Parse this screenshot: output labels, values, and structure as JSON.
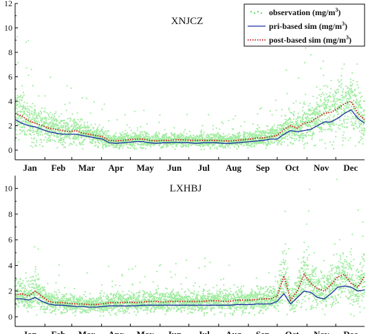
{
  "chart_data": [
    {
      "type": "scatter",
      "title": "XNJCZ",
      "xlabel": "",
      "ylabel": "",
      "ylim": [
        0,
        12
      ],
      "yticks": [
        0,
        2,
        4,
        6,
        8,
        10,
        12
      ],
      "months": [
        "Jan",
        "Feb",
        "Mar",
        "Apr",
        "May",
        "Jun",
        "Jul",
        "Aug",
        "Sep",
        "Oct",
        "Nov",
        "Dec"
      ],
      "legend": {
        "position": "top-right",
        "entries": [
          {
            "label": "observation",
            "unit": "(mg/m",
            "sup": "3",
            "close": ")",
            "style": "dots",
            "color": "#55dd55"
          },
          {
            "label": "pri-based sim",
            "unit": "(mg/m",
            "sup": "3",
            "close": ")",
            "style": "line",
            "color": "#1a2f9f"
          },
          {
            "label": "post-based sim",
            "unit": "(mg/m",
            "sup": "3",
            "close": ")",
            "style": "dotted",
            "color": "#cc1111"
          }
        ]
      },
      "series": [
        {
          "role": "pri",
          "x": [
            1,
            8,
            15,
            22,
            29,
            36,
            43,
            50,
            57,
            64,
            71,
            78,
            85,
            92,
            99,
            106,
            113,
            120,
            127,
            134,
            141,
            148,
            155,
            162,
            169,
            176,
            183,
            190,
            197,
            204,
            211,
            218,
            225,
            232,
            239,
            246,
            253,
            260,
            267,
            274,
            281,
            288,
            295,
            302,
            309,
            316,
            323,
            330,
            337,
            344,
            351,
            358,
            365
          ],
          "values": [
            2.5,
            2.2,
            2.0,
            1.9,
            1.7,
            1.5,
            1.4,
            1.3,
            1.3,
            1.3,
            1.2,
            1.1,
            1.0,
            0.9,
            0.6,
            0.55,
            0.6,
            0.65,
            0.7,
            0.7,
            0.6,
            0.55,
            0.6,
            0.6,
            0.65,
            0.6,
            0.6,
            0.55,
            0.6,
            0.6,
            0.6,
            0.55,
            0.55,
            0.6,
            0.65,
            0.7,
            0.75,
            0.8,
            0.9,
            0.9,
            1.3,
            1.6,
            1.5,
            1.6,
            1.7,
            2.0,
            2.3,
            2.3,
            2.6,
            3.0,
            3.3,
            2.6,
            2.2
          ]
        },
        {
          "role": "post",
          "x": [
            1,
            8,
            15,
            22,
            29,
            36,
            43,
            50,
            57,
            64,
            71,
            78,
            85,
            92,
            99,
            106,
            113,
            120,
            127,
            134,
            141,
            148,
            155,
            162,
            169,
            176,
            183,
            190,
            197,
            204,
            211,
            218,
            225,
            232,
            239,
            246,
            253,
            260,
            267,
            274,
            281,
            288,
            295,
            302,
            309,
            316,
            323,
            330,
            337,
            344,
            351,
            358,
            365
          ],
          "values": [
            3.0,
            2.8,
            2.4,
            2.2,
            2.0,
            1.8,
            1.7,
            1.6,
            1.5,
            1.6,
            1.4,
            1.3,
            1.2,
            1.1,
            0.8,
            0.75,
            0.8,
            0.85,
            0.9,
            0.9,
            0.8,
            0.75,
            0.8,
            0.8,
            0.85,
            0.85,
            0.8,
            0.8,
            0.8,
            0.8,
            0.8,
            0.75,
            0.75,
            0.8,
            0.85,
            0.9,
            1.0,
            1.0,
            1.1,
            1.2,
            1.7,
            2.0,
            1.8,
            2.2,
            2.3,
            2.7,
            3.0,
            3.1,
            3.4,
            3.8,
            4.0,
            3.0,
            2.5
          ]
        }
      ]
    },
    {
      "type": "scatter",
      "title": "LXHBJ",
      "xlabel": "",
      "ylabel": "",
      "ylim": [
        0,
        11
      ],
      "yticks": [
        0,
        2,
        4,
        6,
        8,
        10
      ],
      "months": [
        "Jan",
        "Feb",
        "Mar",
        "Apr",
        "May",
        "Jun",
        "Jul",
        "Aug",
        "Sep",
        "Oct",
        "Nov",
        "Dec"
      ],
      "series": [
        {
          "role": "pri",
          "x": [
            1,
            8,
            15,
            22,
            29,
            36,
            43,
            50,
            57,
            64,
            71,
            78,
            85,
            92,
            99,
            106,
            113,
            120,
            127,
            134,
            141,
            148,
            155,
            162,
            169,
            176,
            183,
            190,
            197,
            204,
            211,
            218,
            225,
            232,
            239,
            246,
            253,
            260,
            267,
            274,
            281,
            288,
            295,
            302,
            309,
            316,
            323,
            330,
            337,
            344,
            351,
            358,
            365
          ],
          "values": [
            1.4,
            1.4,
            1.3,
            1.5,
            1.2,
            1.0,
            0.9,
            0.9,
            0.85,
            0.8,
            0.8,
            0.75,
            0.75,
            0.8,
            0.85,
            0.85,
            0.85,
            0.85,
            0.85,
            0.9,
            0.9,
            0.9,
            0.9,
            0.9,
            0.9,
            0.9,
            0.9,
            0.9,
            0.9,
            0.9,
            0.9,
            0.9,
            0.9,
            0.95,
            0.95,
            0.95,
            1.0,
            1.0,
            1.0,
            1.2,
            1.8,
            1.0,
            1.5,
            2.0,
            1.9,
            1.5,
            1.4,
            1.8,
            2.3,
            2.4,
            2.3,
            2.0,
            2.1
          ]
        },
        {
          "role": "post",
          "x": [
            1,
            8,
            15,
            22,
            29,
            36,
            43,
            50,
            57,
            64,
            71,
            78,
            85,
            92,
            99,
            106,
            113,
            120,
            127,
            134,
            141,
            148,
            155,
            162,
            169,
            176,
            183,
            190,
            197,
            204,
            211,
            218,
            225,
            232,
            239,
            246,
            253,
            260,
            267,
            274,
            281,
            288,
            295,
            302,
            309,
            316,
            323,
            330,
            337,
            344,
            351,
            358,
            365
          ],
          "values": [
            1.7,
            1.8,
            1.6,
            2.0,
            1.6,
            1.2,
            1.1,
            1.1,
            1.05,
            1.0,
            1.0,
            0.95,
            0.95,
            1.0,
            1.1,
            1.1,
            1.1,
            1.15,
            1.1,
            1.15,
            1.2,
            1.2,
            1.15,
            1.2,
            1.2,
            1.2,
            1.2,
            1.2,
            1.2,
            1.25,
            1.25,
            1.2,
            1.2,
            1.3,
            1.3,
            1.3,
            1.35,
            1.4,
            1.4,
            1.6,
            3.2,
            1.3,
            2.0,
            3.3,
            2.6,
            2.2,
            2.0,
            2.5,
            3.1,
            3.3,
            2.6,
            2.3,
            3.2
          ]
        }
      ]
    }
  ]
}
